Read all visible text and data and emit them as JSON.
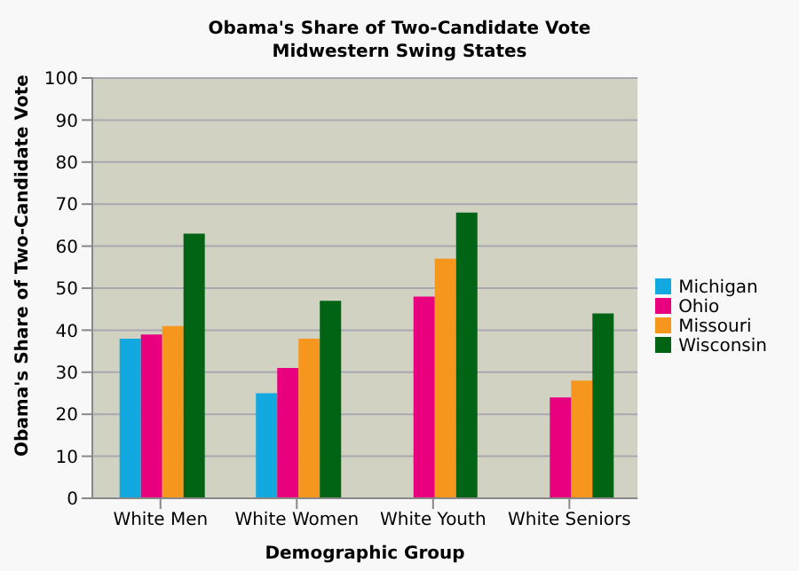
{
  "chart_data": {
    "type": "bar",
    "title": "Obama's Share of Two-Candidate Vote",
    "subtitle": "Midwestern Swing States",
    "xlabel": "Demographic Group",
    "ylabel": "Obama's Share of Two-Candidate Vote",
    "categories": [
      "White Men",
      "White Women",
      "White Youth",
      "White Seniors"
    ],
    "series": [
      {
        "name": "Michigan",
        "color": "#12a8e0",
        "values": [
          38,
          25,
          null,
          null
        ]
      },
      {
        "name": "Ohio",
        "color": "#e8007f",
        "values": [
          39,
          31,
          48,
          24
        ]
      },
      {
        "name": "Missouri",
        "color": "#f7961d",
        "values": [
          41,
          38,
          57,
          28
        ]
      },
      {
        "name": "Wisconsin",
        "color": "#006414",
        "values": [
          63,
          47,
          68,
          44
        ]
      }
    ],
    "ylim": [
      0,
      100
    ],
    "yticks": [
      0,
      10,
      20,
      30,
      40,
      50,
      60,
      70,
      80,
      90,
      100
    ],
    "grid": "y",
    "legend": "right"
  }
}
